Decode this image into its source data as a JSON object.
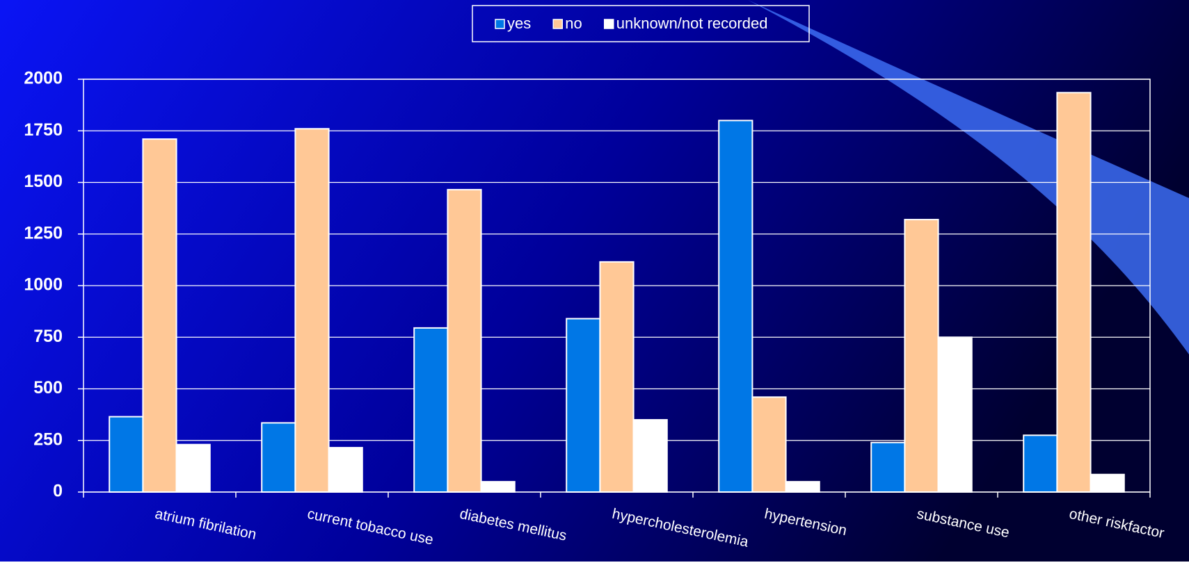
{
  "chart_data": {
    "type": "bar",
    "categories": [
      "atrium fibrilation",
      "current tobacco use",
      "diabetes mellitus",
      "hypercholesterolemia",
      "hypertension",
      "substance use",
      "other riskfactor"
    ],
    "series": [
      {
        "name": "yes",
        "color": "#0077e6",
        "values": [
          365,
          335,
          795,
          840,
          1800,
          240,
          275
        ]
      },
      {
        "name": "no",
        "color": "#ffc896",
        "values": [
          1710,
          1760,
          1465,
          1115,
          460,
          1320,
          1935
        ]
      },
      {
        "name": "unknown/not recorded",
        "color": "#ffffff",
        "values": [
          230,
          215,
          50,
          350,
          50,
          750,
          85
        ]
      }
    ],
    "ylim": [
      0,
      2000
    ],
    "yticks": [
      0,
      250,
      500,
      750,
      1000,
      1250,
      1500,
      1750,
      2000
    ],
    "grid": true
  }
}
